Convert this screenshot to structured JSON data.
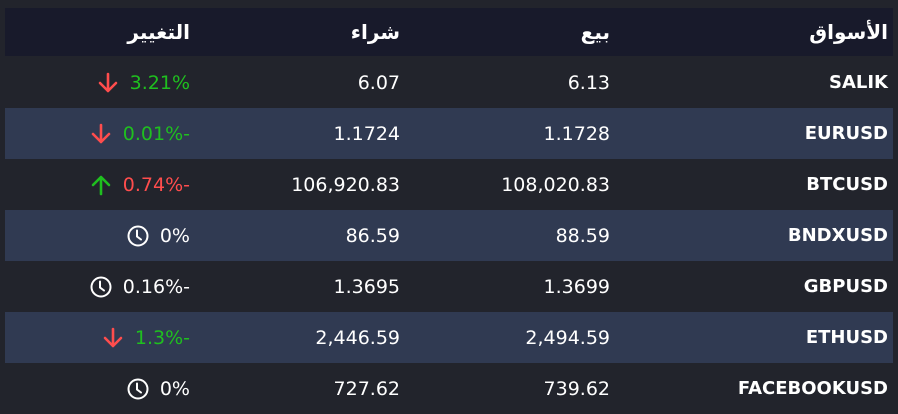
{
  "header": {
    "market": "الأسواق",
    "sell": "بيع",
    "buy": "شراء",
    "change": "التغيير"
  },
  "colors": {
    "up": "#1fbf1f",
    "down": "#ff4d4d",
    "neutral": "#ffffff",
    "header_bg": "#181a2b",
    "alt_row_bg": "#303a52",
    "row_bg": "#22242c"
  },
  "rows": [
    {
      "market": "SALIK",
      "sell": "6.13",
      "buy": "6.07",
      "change": "3.21%",
      "icon": "arrow-down-icon",
      "change_color": "#1fbf1f"
    },
    {
      "market": "EURUSD",
      "sell": "1.1728",
      "buy": "1.1724",
      "change": "0.01%-",
      "icon": "arrow-down-icon",
      "change_color": "#1fbf1f"
    },
    {
      "market": "BTCUSD",
      "sell": "108,020.83",
      "buy": "106,920.83",
      "change": "0.74%-",
      "icon": "arrow-up-icon",
      "change_color": "#ff4d4d"
    },
    {
      "market": "BNDXUSD",
      "sell": "88.59",
      "buy": "86.59",
      "change": "0%",
      "icon": "clock-icon",
      "change_color": "#ffffff"
    },
    {
      "market": "GBPUSD",
      "sell": "1.3699",
      "buy": "1.3695",
      "change": "0.16%-",
      "icon": "clock-icon",
      "change_color": "#ffffff"
    },
    {
      "market": "ETHUSD",
      "sell": "2,494.59",
      "buy": "2,446.59",
      "change": "1.3%-",
      "icon": "arrow-down-icon",
      "change_color": "#1fbf1f"
    },
    {
      "market": "FACEBOOKUSD",
      "sell": "739.62",
      "buy": "727.62",
      "change": "0%",
      "icon": "clock-icon",
      "change_color": "#ffffff"
    }
  ]
}
